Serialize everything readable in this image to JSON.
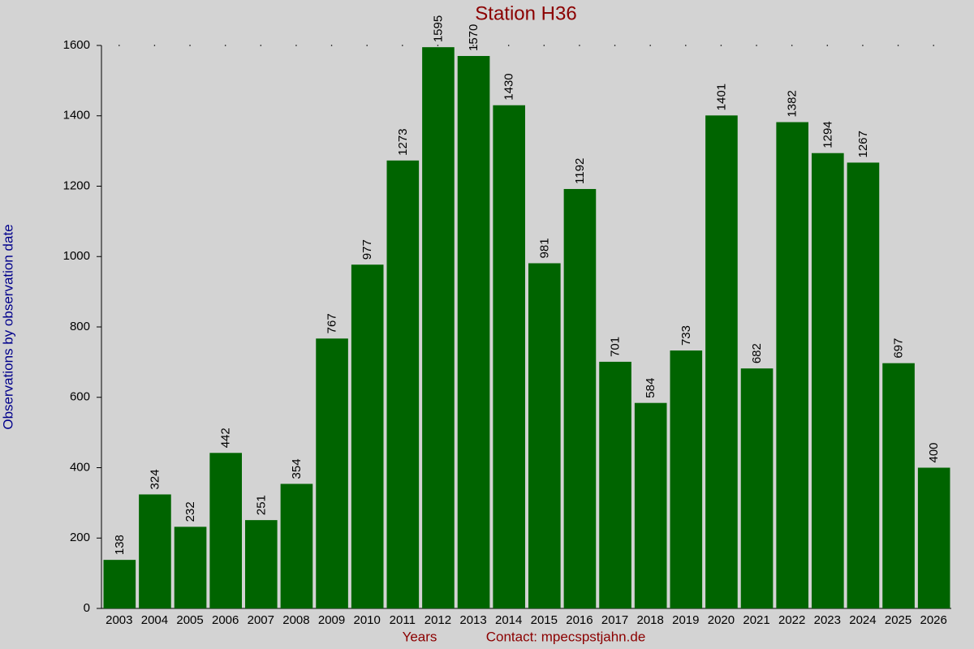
{
  "chart_data": {
    "type": "bar",
    "title": "Station H36",
    "y_label": "Observations by observation date",
    "x_label": "Years",
    "annotation": "Contact: mpecspstjahn.de",
    "categories": [
      "2003",
      "2004",
      "2005",
      "2006",
      "2007",
      "2008",
      "2009",
      "2010",
      "2011",
      "2012",
      "2013",
      "2014",
      "2015",
      "2016",
      "2017",
      "2018",
      "2019",
      "2020",
      "2021",
      "2022",
      "2023",
      "2024",
      "2025",
      "2026"
    ],
    "values": [
      138,
      324,
      232,
      442,
      251,
      354,
      767,
      977,
      1273,
      1595,
      1570,
      1430,
      981,
      1192,
      701,
      584,
      733,
      1401,
      682,
      1382,
      1294,
      1267,
      697,
      400
    ],
    "color": "#006400",
    "ylim": [
      0,
      1600
    ],
    "yticks": [
      0,
      200,
      400,
      600,
      800,
      1000,
      1200,
      1400,
      1600
    ]
  }
}
